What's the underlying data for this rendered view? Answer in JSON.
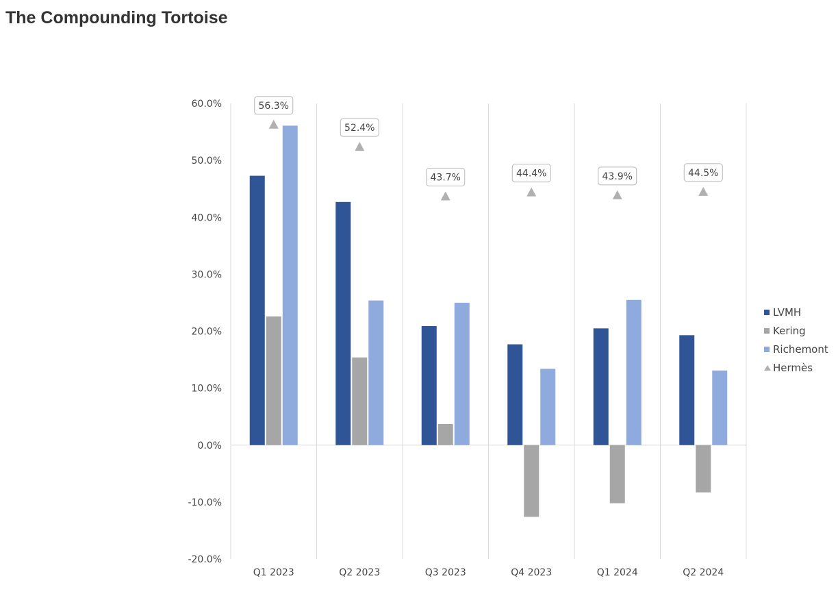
{
  "page": {
    "title": "The Compounding Tortoise"
  },
  "chart_data": {
    "type": "bar",
    "categories": [
      "Q1 2023",
      "Q2 2023",
      "Q3 2023",
      "Q4 2023",
      "Q1 2024",
      "Q2 2024"
    ],
    "series": [
      {
        "name": "LVMH",
        "kind": "bar",
        "color": "#2f5597",
        "values": [
          47.3,
          42.7,
          20.9,
          17.7,
          20.5,
          19.3
        ]
      },
      {
        "name": "Kering",
        "kind": "bar",
        "color": "#a6a6a6",
        "values": [
          22.6,
          15.4,
          3.7,
          -12.6,
          -10.2,
          -8.3
        ]
      },
      {
        "name": "Richemont",
        "kind": "bar",
        "color": "#8faadc",
        "values": [
          56.1,
          25.4,
          25.0,
          13.4,
          25.5,
          13.1
        ]
      },
      {
        "name": "Hermès",
        "kind": "marker",
        "marker": "triangle",
        "color": "#b0b0b0",
        "values": [
          56.3,
          52.4,
          43.7,
          44.4,
          43.9,
          44.5
        ]
      }
    ],
    "data_labels": [
      "56.3%",
      "52.4%",
      "43.7%",
      "44.4%",
      "43.9%",
      "44.5%"
    ],
    "y_ticks": [
      60,
      50,
      40,
      30,
      20,
      10,
      0,
      -10,
      -20
    ],
    "y_tick_labels": [
      "60.0%",
      "50.0%",
      "40.0%",
      "30.0%",
      "20.0%",
      "10.0%",
      "0.0%",
      "-10.0%",
      "-20.0%"
    ],
    "ylim": [
      -20,
      60
    ],
    "grid": "vertical category separators",
    "legend_position": "right"
  }
}
